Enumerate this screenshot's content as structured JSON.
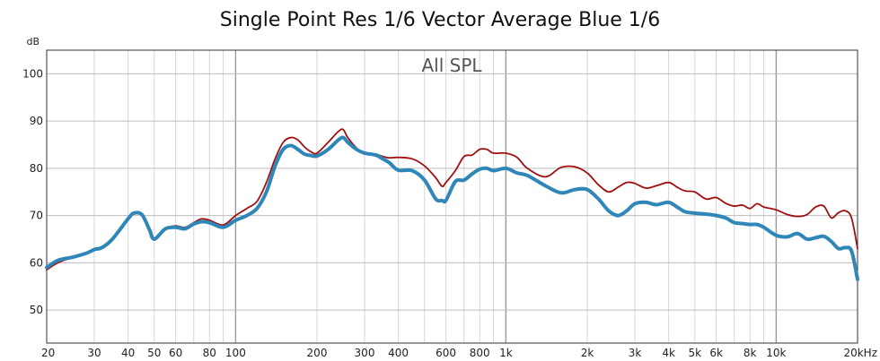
{
  "chart_data": {
    "type": "line",
    "title": "Single Point Res 1/6 Vector Average Blue 1/6",
    "annotation": "All SPL",
    "ylabel": "dB",
    "xlabel": "",
    "x_scale": "log",
    "xlim": [
      20,
      20000
    ],
    "ylim": [
      43,
      105
    ],
    "x_ticks": [
      {
        "value": 20,
        "label": "20"
      },
      {
        "value": 30,
        "label": "30"
      },
      {
        "value": 40,
        "label": "40"
      },
      {
        "value": 50,
        "label": "50"
      },
      {
        "value": 60,
        "label": "60"
      },
      {
        "value": 80,
        "label": "80"
      },
      {
        "value": 100,
        "label": "100"
      },
      {
        "value": 200,
        "label": "200"
      },
      {
        "value": 300,
        "label": "300"
      },
      {
        "value": 400,
        "label": "400"
      },
      {
        "value": 600,
        "label": "600"
      },
      {
        "value": 800,
        "label": "800"
      },
      {
        "value": 1000,
        "label": "1k"
      },
      {
        "value": 2000,
        "label": "2k"
      },
      {
        "value": 3000,
        "label": "3k"
      },
      {
        "value": 4000,
        "label": "4k"
      },
      {
        "value": 5000,
        "label": "5k"
      },
      {
        "value": 6000,
        "label": "6k"
      },
      {
        "value": 8000,
        "label": "8k"
      },
      {
        "value": 10000,
        "label": "10k"
      },
      {
        "value": 20000,
        "label": "20kHz"
      }
    ],
    "y_ticks": [
      50,
      60,
      70,
      80,
      90,
      100
    ],
    "grid": true,
    "series": [
      {
        "color": "#a01010",
        "x": [
          20,
          22,
          25,
          28,
          30,
          32,
          35,
          40,
          42,
          45,
          48,
          50,
          55,
          60,
          65,
          70,
          75,
          80,
          90,
          100,
          110,
          120,
          130,
          140,
          150,
          160,
          170,
          180,
          190,
          200,
          220,
          240,
          250,
          260,
          280,
          300,
          330,
          350,
          370,
          400,
          450,
          500,
          550,
          580,
          600,
          650,
          700,
          750,
          800,
          850,
          900,
          1000,
          1100,
          1200,
          1400,
          1600,
          1800,
          2000,
          2200,
          2400,
          2600,
          2800,
          3000,
          3300,
          3600,
          4000,
          4300,
          4600,
          5000,
          5500,
          6000,
          6500,
          7000,
          7500,
          8000,
          8500,
          9000,
          10000,
          11000,
          12000,
          13000,
          14000,
          15000,
          16000,
          17000,
          18000,
          19000,
          20000
        ],
        "values": [
          58.5,
          60,
          61.2,
          62,
          62.8,
          63.2,
          65,
          69.3,
          70.5,
          70.2,
          67,
          65,
          67.2,
          67.8,
          67.5,
          68.5,
          69.3,
          69,
          68,
          70,
          71.5,
          73,
          77,
          82,
          85.5,
          86.5,
          86,
          84.5,
          83.5,
          83.2,
          85.5,
          87.8,
          88.2,
          86.5,
          84.3,
          83.3,
          83,
          82.5,
          82.2,
          82.3,
          82,
          80.5,
          78,
          76.2,
          77,
          79.5,
          82.5,
          82.8,
          84,
          84,
          83.2,
          83.2,
          82.3,
          80,
          78.2,
          80.2,
          80.3,
          79,
          76.5,
          75,
          76,
          77,
          76.8,
          75.8,
          76.3,
          77,
          76,
          75.2,
          75,
          73.5,
          73.8,
          72.6,
          72,
          72.2,
          71.5,
          72.5,
          71.8,
          71.2,
          70.2,
          69.8,
          70.2,
          71.8,
          72,
          69.5,
          70.6,
          71,
          69.5,
          63
        ]
      },
      {
        "color": "#2f86b8",
        "x": [
          20,
          22,
          25,
          28,
          30,
          32,
          35,
          40,
          42,
          45,
          48,
          50,
          55,
          60,
          65,
          70,
          75,
          80,
          90,
          100,
          110,
          120,
          130,
          140,
          150,
          160,
          170,
          180,
          190,
          200,
          220,
          240,
          250,
          260,
          280,
          300,
          330,
          350,
          370,
          400,
          450,
          500,
          550,
          580,
          600,
          650,
          700,
          750,
          800,
          850,
          900,
          1000,
          1100,
          1200,
          1400,
          1600,
          1800,
          2000,
          2200,
          2400,
          2600,
          2800,
          3000,
          3300,
          3600,
          4000,
          4300,
          4600,
          5000,
          5500,
          6000,
          6500,
          7000,
          7500,
          8000,
          8500,
          9000,
          10000,
          11000,
          12000,
          13000,
          14000,
          15000,
          16000,
          17000,
          18000,
          19000,
          20000
        ],
        "values": [
          59,
          60.5,
          61.2,
          62,
          62.8,
          63.2,
          65,
          69.3,
          70.5,
          70.2,
          67,
          65,
          67.2,
          67.5,
          67.2,
          68.2,
          68.7,
          68.5,
          67.5,
          69,
          70,
          71.5,
          75,
          80.5,
          84,
          84.8,
          84,
          83,
          82.7,
          82.6,
          84,
          86,
          86.5,
          85.5,
          84,
          83.2,
          82.8,
          82,
          81.2,
          79.6,
          79.5,
          77.5,
          73.5,
          73.2,
          73.2,
          77.2,
          77.5,
          78.8,
          79.8,
          80,
          79.5,
          80,
          79,
          78.5,
          76.3,
          74.8,
          75.5,
          75.5,
          73.5,
          71,
          70,
          71,
          72.5,
          72.8,
          72.3,
          72.8,
          71.8,
          70.8,
          70.5,
          70.3,
          70,
          69.5,
          68.5,
          68.3,
          68.1,
          68.1,
          67.5,
          65.8,
          65.5,
          66.2,
          65,
          65.3,
          65.6,
          64.5,
          63,
          63.2,
          62.5,
          56.5
        ]
      }
    ]
  }
}
